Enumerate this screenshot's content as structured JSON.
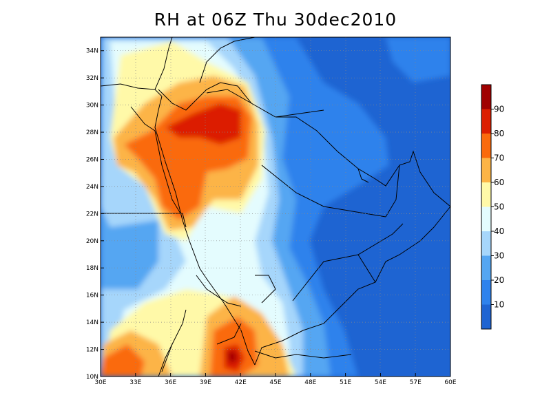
{
  "title": "RH at 06Z Thu 30dec2010",
  "map": {
    "lon_range": [
      30,
      60
    ],
    "lat_range": [
      10,
      35
    ],
    "lon_ticks": [
      "30E",
      "33E",
      "36E",
      "39E",
      "42E",
      "45E",
      "48E",
      "51E",
      "54E",
      "57E",
      "60E"
    ],
    "lat_ticks": [
      "10N",
      "12N",
      "14N",
      "16N",
      "18N",
      "20N",
      "22N",
      "24N",
      "26N",
      "28N",
      "30N",
      "32N",
      "34N"
    ],
    "grid": "dotted"
  },
  "colorbar": {
    "labels": [
      "10",
      "20",
      "30",
      "40",
      "50",
      "60",
      "70",
      "80",
      "90"
    ],
    "colors": [
      "#1e64d2",
      "#2e82ec",
      "#55a6f2",
      "#a6d6fb",
      "#e4fcfe",
      "#fff9a8",
      "#fcb446",
      "#fa6a0c",
      "#dc1e00",
      "#a00000"
    ]
  }
}
